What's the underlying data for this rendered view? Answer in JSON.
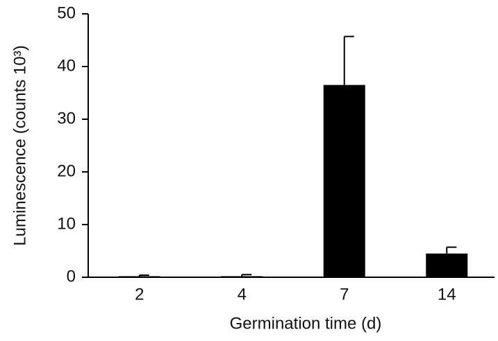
{
  "chart_data": {
    "type": "bar",
    "xlabel": "Germination time (d)",
    "ylabel": "Luminescence (counts 10³)",
    "categories": [
      "2",
      "4",
      "7",
      "14"
    ],
    "values": [
      0.2,
      0.2,
      36.5,
      4.5
    ],
    "errors": [
      0.2,
      0.3,
      9.2,
      1.2
    ],
    "color": "#000000",
    "ylim": [
      0,
      50
    ],
    "yticks": [
      0,
      10,
      20,
      30,
      40,
      50
    ],
    "grid": false
  }
}
